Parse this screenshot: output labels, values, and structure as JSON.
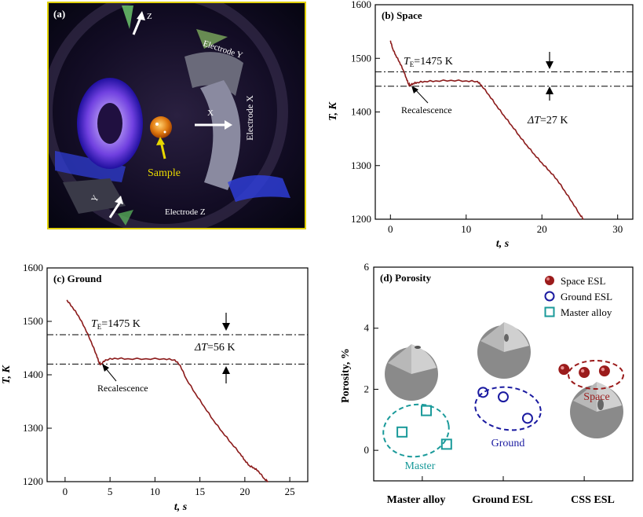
{
  "panel_a": {
    "label": "(a)",
    "texts": {
      "z": "Z",
      "electrode_y": "Electrode Y",
      "x": "X",
      "electrode_x": "Electrode X",
      "sample": "Sample",
      "y": "Y",
      "electrode_z": "Electrode Z"
    },
    "colors": {
      "border": "#e0d000",
      "sample_label": "#e8d800",
      "background": "#0a0a1a"
    }
  },
  "chart_data": [
    {
      "id": "b",
      "type": "line",
      "panel_label": "(b) Space",
      "xlabel": "t, s",
      "ylabel": "T, K",
      "xlim": [
        -2,
        32
      ],
      "ylim": [
        1200,
        1600
      ],
      "xticks": [
        0,
        10,
        20,
        30
      ],
      "yticks": [
        1200,
        1300,
        1400,
        1500,
        1600
      ],
      "color": "#8b1a1a",
      "points": [
        [
          0.0,
          1533
        ],
        [
          0.3,
          1518
        ],
        [
          0.7,
          1506
        ],
        [
          1.2,
          1493
        ],
        [
          1.7,
          1478
        ],
        [
          2.1,
          1463
        ],
        [
          2.4,
          1452
        ],
        [
          2.6,
          1450
        ],
        [
          3.0,
          1453
        ],
        [
          3.5,
          1455
        ],
        [
          4.5,
          1457
        ],
        [
          6,
          1458
        ],
        [
          8,
          1459
        ],
        [
          10,
          1458
        ],
        [
          11.5,
          1457
        ],
        [
          12,
          1450
        ],
        [
          13,
          1432
        ],
        [
          14,
          1412
        ],
        [
          15,
          1393
        ],
        [
          16,
          1375
        ],
        [
          17,
          1356
        ],
        [
          18,
          1338
        ],
        [
          19,
          1321
        ],
        [
          20,
          1305
        ],
        [
          21,
          1290
        ],
        [
          22,
          1274
        ],
        [
          23,
          1253
        ],
        [
          24,
          1232
        ],
        [
          25,
          1209
        ],
        [
          25.5,
          1200
        ]
      ],
      "lines": [
        {
          "y": 1475,
          "label": "T_E=1475 K"
        },
        {
          "y": 1448
        }
      ],
      "annotations": {
        "te_label": "=1475 K",
        "te_prefix": "T",
        "te_sub": "E",
        "dt_label": "=27 K",
        "dt_prefix": "ΔT",
        "recalescence": "Recalescence"
      }
    },
    {
      "id": "c",
      "type": "line",
      "panel_label": "(c) Ground",
      "xlabel": "t, s",
      "ylabel": "T, K",
      "xlim": [
        -2,
        27
      ],
      "ylim": [
        1200,
        1600
      ],
      "xticks": [
        0,
        5,
        10,
        15,
        20,
        25
      ],
      "yticks": [
        1200,
        1300,
        1400,
        1500,
        1600
      ],
      "color": "#8b1a1a",
      "points": [
        [
          0.2,
          1540
        ],
        [
          0.8,
          1527
        ],
        [
          1.5,
          1510
        ],
        [
          2.2,
          1488
        ],
        [
          2.9,
          1462
        ],
        [
          3.5,
          1437
        ],
        [
          3.8,
          1422
        ],
        [
          4.0,
          1420
        ],
        [
          4.5,
          1428
        ],
        [
          5.5,
          1431
        ],
        [
          7,
          1430
        ],
        [
          9,
          1430
        ],
        [
          11,
          1430
        ],
        [
          12.2,
          1428
        ],
        [
          12.8,
          1418
        ],
        [
          13.5,
          1392
        ],
        [
          14.5,
          1365
        ],
        [
          15.5,
          1340
        ],
        [
          16.5,
          1315
        ],
        [
          17.5,
          1293
        ],
        [
          18.5,
          1272
        ],
        [
          19.5,
          1252
        ],
        [
          20,
          1240
        ],
        [
          20.5,
          1230
        ],
        [
          21,
          1226
        ],
        [
          21.5,
          1220
        ],
        [
          22.2,
          1205
        ],
        [
          22.6,
          1200
        ]
      ],
      "lines": [
        {
          "y": 1475
        },
        {
          "y": 1420
        }
      ],
      "annotations": {
        "te_label": "=1475 K",
        "te_prefix": "T",
        "te_sub": "E",
        "dt_label": "=56 K",
        "dt_prefix": "ΔT",
        "recalescence": "Recalescence"
      }
    },
    {
      "id": "d",
      "type": "scatter",
      "panel_label": "(d) Porosity",
      "ylabel": "Porosity, %",
      "ylim": [
        -1,
        6
      ],
      "yticks": [
        0,
        2,
        4,
        6
      ],
      "categories": [
        "Master alloy",
        "Ground ESL",
        "CSS ESL"
      ],
      "legend_position": "top-right",
      "series": [
        {
          "name": "Space ESL",
          "marker": "sphere",
          "color": "#9b1b1b",
          "points": [
            [
              2.75,
              2.65
            ],
            [
              3.0,
              2.55
            ],
            [
              3.25,
              2.6
            ]
          ]
        },
        {
          "name": "Ground ESL",
          "marker": "circle",
          "color": "#1a1aa0",
          "points": [
            [
              1.75,
              1.9
            ],
            [
              2.0,
              1.75
            ],
            [
              2.3,
              1.05
            ]
          ]
        },
        {
          "name": "Master alloy",
          "marker": "square",
          "color": "#1a9a9a",
          "points": [
            [
              0.75,
              0.6
            ],
            [
              1.05,
              1.3
            ],
            [
              1.3,
              0.2
            ]
          ]
        }
      ],
      "group_labels": {
        "space": "Space",
        "ground": "Ground",
        "master": "Master"
      }
    }
  ]
}
